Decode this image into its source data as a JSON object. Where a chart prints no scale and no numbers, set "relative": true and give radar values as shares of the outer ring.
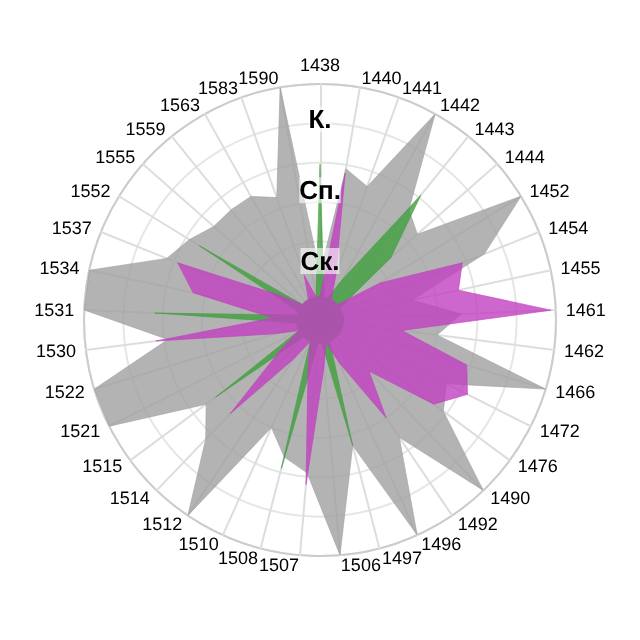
{
  "chart_data": {
    "type": "radar",
    "relative": true,
    "categories": [
      "1438",
      "1440",
      "1441",
      "1442",
      "1443",
      "1444",
      "1452",
      "1454",
      "1455",
      "1461",
      "1462",
      "1466",
      "1472",
      "1476",
      "1490",
      "1492",
      "1496",
      "1497",
      "1506",
      "1507",
      "1508",
      "1510",
      "1512",
      "1514",
      "1515",
      "1521",
      "1522",
      "1530",
      "1531",
      "1534",
      "1537",
      "1552",
      "1555",
      "1559",
      "1563",
      "1583",
      "1590"
    ],
    "series": [
      {
        "color": "#a0a0a0",
        "values": [
          0.2,
          0.65,
          0.6,
          1,
          0.6,
          0.55,
          1,
          0.75,
          0.4,
          0.6,
          0.5,
          1,
          0.6,
          0.65,
          1,
          0.6,
          1,
          0.55,
          1,
          0.65,
          0.6,
          0.5,
          1,
          0.7,
          0.6,
          1,
          1,
          0.65,
          1,
          1,
          0.7,
          0.65,
          0.6,
          0.6,
          0.6,
          0.55,
          1
        ]
      },
      {
        "color": "#40a040",
        "values": [
          0.66,
          0.1,
          0.1,
          0.2,
          0.68,
          0.4,
          0.1,
          0.1,
          0.1,
          0.1,
          0.1,
          0.1,
          0.1,
          0.1,
          0.1,
          0.1,
          0.1,
          0.55,
          0.1,
          0.1,
          0.65,
          0.1,
          0.1,
          0.1,
          0.55,
          0.1,
          0.1,
          0.1,
          0.7,
          0.1,
          0.1,
          0.6,
          0.1,
          0.1,
          0.1,
          0.1,
          0.1
        ]
      },
      {
        "color": "#c040c0",
        "values": [
          0.1,
          0.63,
          0.2,
          0.1,
          0.1,
          0.1,
          0.3,
          0.65,
          0.6,
          0.98,
          0.35,
          0.65,
          0.7,
          0.6,
          0.3,
          0.5,
          0.2,
          0.1,
          0.2,
          0.7,
          0.2,
          0.1,
          0.2,
          0.55,
          0.2,
          0.1,
          0.2,
          0.7,
          0.2,
          0.55,
          0.65,
          0.2,
          0.1,
          0.1,
          0.1,
          0.2,
          0.1
        ]
      }
    ],
    "annotations": [
      "К.",
      "Сп.",
      "Ск."
    ]
  }
}
